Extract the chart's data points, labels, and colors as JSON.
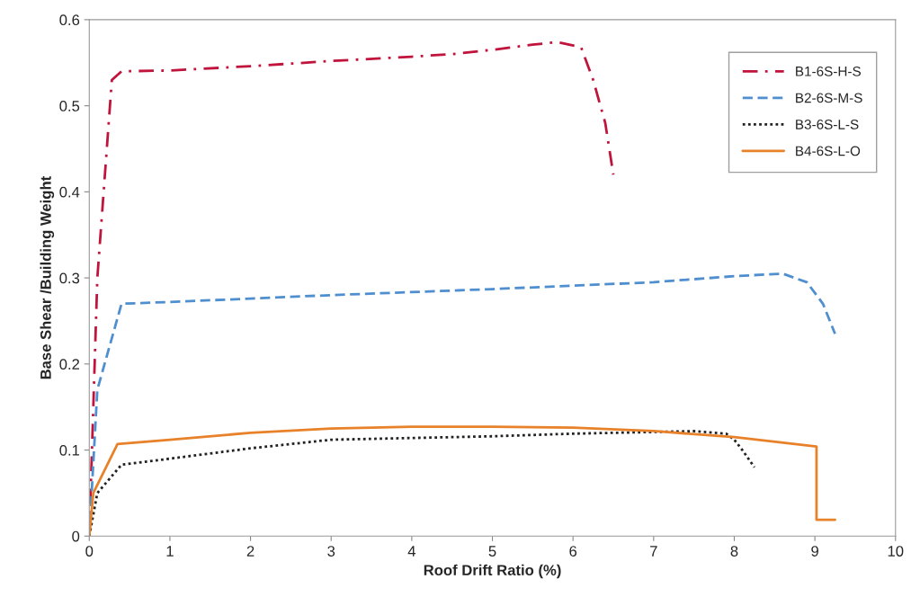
{
  "chart_data": {
    "type": "line",
    "xlabel": "Roof Drift Ratio (%)",
    "ylabel": "Base Shear /Building Weight",
    "xlim": [
      0,
      10
    ],
    "xticks": [
      0,
      1,
      2,
      3,
      4,
      5,
      6,
      7,
      8,
      9,
      10
    ],
    "ylim": [
      0,
      0.6
    ],
    "yticks": [
      0,
      0.1,
      0.2,
      0.3,
      0.4,
      0.5,
      0.6
    ],
    "grid": false,
    "legend": "top right",
    "marker": "none",
    "series": [
      {
        "name": "B1-6S-H-S",
        "color": "#c0143c",
        "line_style": "dashdot",
        "x": [
          0,
          0.1,
          0.28,
          0.4,
          1,
          2,
          3,
          4,
          4.5,
          5,
          5.5,
          5.8,
          6.1,
          6.25,
          6.4,
          6.5
        ],
        "values": [
          0,
          0.3,
          0.53,
          0.54,
          0.541,
          0.546,
          0.552,
          0.557,
          0.56,
          0.565,
          0.571,
          0.574,
          0.568,
          0.53,
          0.48,
          0.42
        ]
      },
      {
        "name": "B2-6S-M-S",
        "color": "#4f8fcf",
        "line_style": "dashed",
        "x": [
          0,
          0.1,
          0.4,
          1,
          3,
          5,
          7,
          8,
          8.6,
          8.9,
          9.1,
          9.25
        ],
        "values": [
          0,
          0.17,
          0.27,
          0.272,
          0.28,
          0.287,
          0.295,
          0.302,
          0.305,
          0.295,
          0.27,
          0.235
        ]
      },
      {
        "name": "B3-6S-L-S",
        "color": "#222222",
        "line_style": "dotted",
        "x": [
          0,
          0.1,
          0.4,
          1,
          2,
          3,
          4,
          5,
          6,
          7,
          7.5,
          7.9,
          8.0,
          8.1,
          8.25
        ],
        "values": [
          0,
          0.05,
          0.083,
          0.09,
          0.102,
          0.112,
          0.114,
          0.116,
          0.119,
          0.121,
          0.122,
          0.119,
          0.112,
          0.1,
          0.08
        ]
      },
      {
        "name": "B4-6S-L-O",
        "color": "#e8822a",
        "line_style": "solid",
        "x": [
          0,
          0.05,
          0.35,
          1,
          2,
          3,
          4,
          5,
          6,
          7,
          8,
          9.02,
          9.02,
          9.25
        ],
        "values": [
          0,
          0.05,
          0.107,
          0.112,
          0.12,
          0.125,
          0.127,
          0.127,
          0.126,
          0.122,
          0.115,
          0.104,
          0.019,
          0.019
        ]
      }
    ]
  }
}
